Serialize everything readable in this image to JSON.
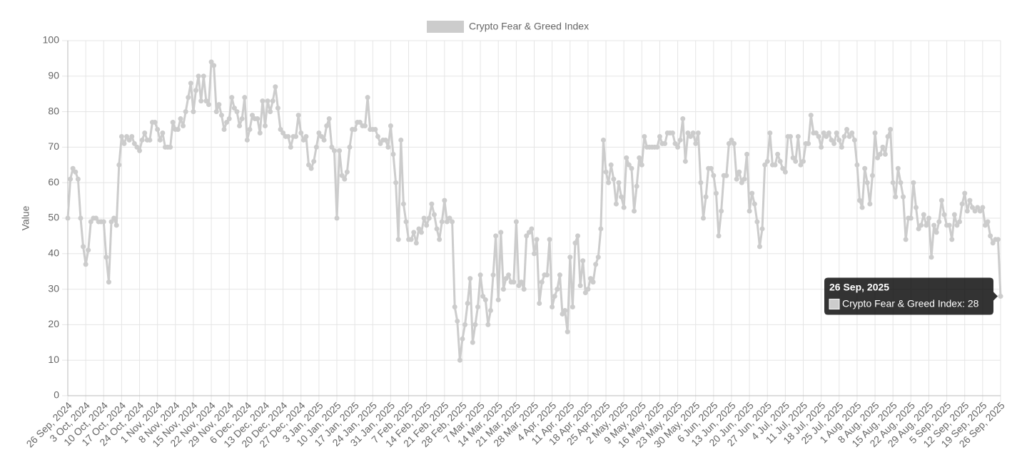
{
  "chart_data": {
    "type": "line",
    "y_label": "Value",
    "ylim": [
      0,
      100
    ],
    "yticks": [
      0,
      10,
      20,
      30,
      40,
      50,
      60,
      70,
      80,
      90,
      100
    ],
    "grid": true,
    "legend": "top",
    "categories": [
      "26 Sep, 2024",
      null,
      null,
      null,
      null,
      null,
      null,
      "3 Oct, 2024",
      null,
      null,
      null,
      null,
      null,
      null,
      "10 Oct, 2024",
      null,
      null,
      null,
      null,
      null,
      null,
      "17 Oct, 2024",
      null,
      null,
      null,
      null,
      null,
      null,
      "24 Oct, 2024",
      null,
      null,
      null,
      null,
      null,
      null,
      "1 Nov, 2024",
      null,
      null,
      null,
      null,
      null,
      null,
      "8 Nov, 2024",
      null,
      null,
      null,
      null,
      null,
      null,
      "15 Nov, 2024",
      null,
      null,
      null,
      null,
      null,
      null,
      "22 Nov, 2024",
      null,
      null,
      null,
      null,
      null,
      null,
      "29 Nov, 2024",
      null,
      null,
      null,
      null,
      null,
      null,
      "6 Dec, 2024",
      null,
      null,
      null,
      null,
      null,
      null,
      "13 Dec, 2024",
      null,
      null,
      null,
      null,
      null,
      null,
      "20 Dec, 2024",
      null,
      null,
      null,
      null,
      null,
      null,
      "27 Dec, 2024",
      null,
      null,
      null,
      null,
      null,
      null,
      "3 Jan, 2025",
      null,
      null,
      null,
      null,
      null,
      null,
      "10 Jan, 2025",
      null,
      null,
      null,
      null,
      null,
      null,
      "17 Jan, 2025",
      null,
      null,
      null,
      null,
      null,
      null,
      "24 Jan, 2025",
      null,
      null,
      null,
      null,
      null,
      null,
      "31 Jan, 2025",
      null,
      null,
      null,
      null,
      null,
      null,
      "7 Feb, 2025",
      null,
      null,
      null,
      null,
      null,
      null,
      "14 Feb, 2025",
      null,
      null,
      null,
      null,
      null,
      null,
      "21 Feb, 2025",
      null,
      null,
      null,
      null,
      null,
      null,
      "28 Feb, 2025",
      null,
      null,
      null,
      null,
      null,
      null,
      "7 Mar, 2025",
      null,
      null,
      null,
      null,
      null,
      null,
      "14 Mar, 2025",
      null,
      null,
      null,
      null,
      null,
      null,
      "21 Mar, 2025",
      null,
      null,
      null,
      null,
      null,
      null,
      "28 Mar, 2025",
      null,
      null,
      null,
      null,
      null,
      null,
      "4 Apr, 2025",
      null,
      null,
      null,
      null,
      null,
      null,
      "11 Apr, 2025",
      null,
      null,
      null,
      null,
      null,
      null,
      "18 Apr, 2025",
      null,
      null,
      null,
      null,
      null,
      null,
      "25 Apr, 2025",
      null,
      null,
      null,
      null,
      null,
      null,
      "2 May, 2025",
      null,
      null,
      null,
      null,
      null,
      null,
      "9 May, 2025",
      null,
      null,
      null,
      null,
      null,
      null,
      "16 May, 2025",
      null,
      null,
      null,
      null,
      null,
      null,
      "23 May, 2025",
      null,
      null,
      null,
      null,
      null,
      null,
      "30 May, 2025",
      null,
      null,
      null,
      null,
      null,
      null,
      "6 Jun, 2025",
      null,
      null,
      null,
      null,
      null,
      null,
      "13 Jun, 2025",
      null,
      null,
      null,
      null,
      null,
      null,
      "20 Jun, 2025",
      null,
      null,
      null,
      null,
      null,
      null,
      "27 Jun, 2025",
      null,
      null,
      null,
      null,
      null,
      null,
      "4 Jul, 2025",
      null,
      null,
      null,
      null,
      null,
      null,
      "11 Jul, 2025",
      null,
      null,
      null,
      null,
      null,
      null,
      "18 Jul, 2025",
      null,
      null,
      null,
      null,
      null,
      null,
      "25 Jul, 2025",
      null,
      null,
      null,
      null,
      null,
      null,
      "1 Aug, 2025",
      null,
      null,
      null,
      null,
      null,
      null,
      "8 Aug, 2025",
      null,
      null,
      null,
      null,
      null,
      null,
      "15 Aug, 2025",
      null,
      null,
      null,
      null,
      null,
      null,
      "22 Aug, 2025",
      null,
      null,
      null,
      null,
      null,
      null,
      "29 Aug, 2025",
      null,
      null,
      null,
      null,
      null,
      null,
      "5 Sep, 2025",
      null,
      null,
      null,
      null,
      null,
      null,
      "12 Sep, 2025",
      null,
      null,
      null,
      null,
      null,
      null,
      "19 Sep, 2025",
      null,
      null,
      null,
      null,
      null,
      null,
      "26 Sep, 2025"
    ],
    "series": [
      {
        "name": "Crypto Fear & Greed Index",
        "color": "#cccccc",
        "values": [
          50,
          61,
          64,
          63,
          61,
          50,
          42,
          37,
          41,
          49,
          50,
          50,
          49,
          49,
          49,
          39,
          32,
          49,
          50,
          48,
          65,
          73,
          71,
          73,
          72,
          73,
          71,
          70,
          69,
          72,
          74,
          72,
          72,
          77,
          77,
          75,
          72,
          74,
          70,
          70,
          70,
          77,
          75,
          75,
          78,
          76,
          80,
          84,
          88,
          80,
          86,
          90,
          83,
          90,
          83,
          82,
          94,
          93,
          80,
          82,
          79,
          75,
          77,
          78,
          84,
          81,
          80,
          76,
          78,
          84,
          72,
          75,
          79,
          78,
          78,
          74,
          83,
          76,
          83,
          80,
          83,
          87,
          81,
          75,
          74,
          73,
          73,
          70,
          73,
          73,
          79,
          74,
          72,
          73,
          65,
          64,
          66,
          70,
          74,
          73,
          72,
          76,
          78,
          70,
          69,
          50,
          69,
          62,
          61,
          63,
          70,
          75,
          75,
          77,
          77,
          76,
          76,
          84,
          75,
          75,
          75,
          73,
          71,
          72,
          72,
          70,
          76,
          68,
          60,
          44,
          72,
          54,
          49,
          44,
          44,
          46,
          43,
          47,
          46,
          50,
          48,
          50,
          54,
          51,
          47,
          44,
          49,
          55,
          49,
          50,
          49,
          25,
          21,
          10,
          16,
          20,
          26,
          33,
          15,
          20,
          25,
          34,
          28,
          27,
          20,
          24,
          34,
          45,
          27,
          46,
          30,
          33,
          34,
          32,
          32,
          49,
          31,
          32,
          30,
          45,
          46,
          47,
          40,
          44,
          26,
          32,
          34,
          34,
          44,
          25,
          28,
          30,
          34,
          23,
          24,
          18,
          39,
          25,
          43,
          45,
          31,
          38,
          29,
          30,
          33,
          32,
          37,
          39,
          47,
          72,
          63,
          60,
          65,
          61,
          54,
          60,
          56,
          53,
          67,
          65,
          64,
          52,
          59,
          67,
          65,
          73,
          70,
          70,
          70,
          70,
          70,
          73,
          71,
          71,
          74,
          74,
          74,
          71,
          70,
          72,
          78,
          66,
          74,
          73,
          74,
          71,
          74,
          60,
          50,
          56,
          64,
          64,
          62,
          57,
          45,
          52,
          62,
          62,
          71,
          72,
          71,
          61,
          63,
          60,
          61,
          68,
          52,
          57,
          54,
          49,
          42,
          47,
          65,
          66,
          74,
          65,
          65,
          68,
          66,
          64,
          63,
          73,
          73,
          67,
          66,
          73,
          65,
          66,
          71,
          71,
          79,
          74,
          74,
          73,
          70,
          74,
          73,
          74,
          72,
          71,
          74,
          72,
          70,
          73,
          75,
          73,
          74,
          72,
          65,
          55,
          53,
          64,
          60,
          54,
          62,
          74,
          67,
          68,
          70,
          68,
          73,
          75,
          60,
          56,
          64,
          60,
          56,
          44,
          50,
          50,
          60,
          53,
          47,
          48,
          51,
          48,
          50,
          39,
          48,
          46,
          49,
          55,
          51,
          48,
          48,
          44,
          51,
          48,
          49,
          54,
          57,
          52,
          55,
          53,
          52,
          53,
          52,
          53,
          48,
          49,
          45,
          43,
          44,
          44,
          28
        ]
      }
    ],
    "tooltip": {
      "title": "26 Sep, 2025",
      "label": "Crypto Fear & Greed Index: 28"
    }
  }
}
